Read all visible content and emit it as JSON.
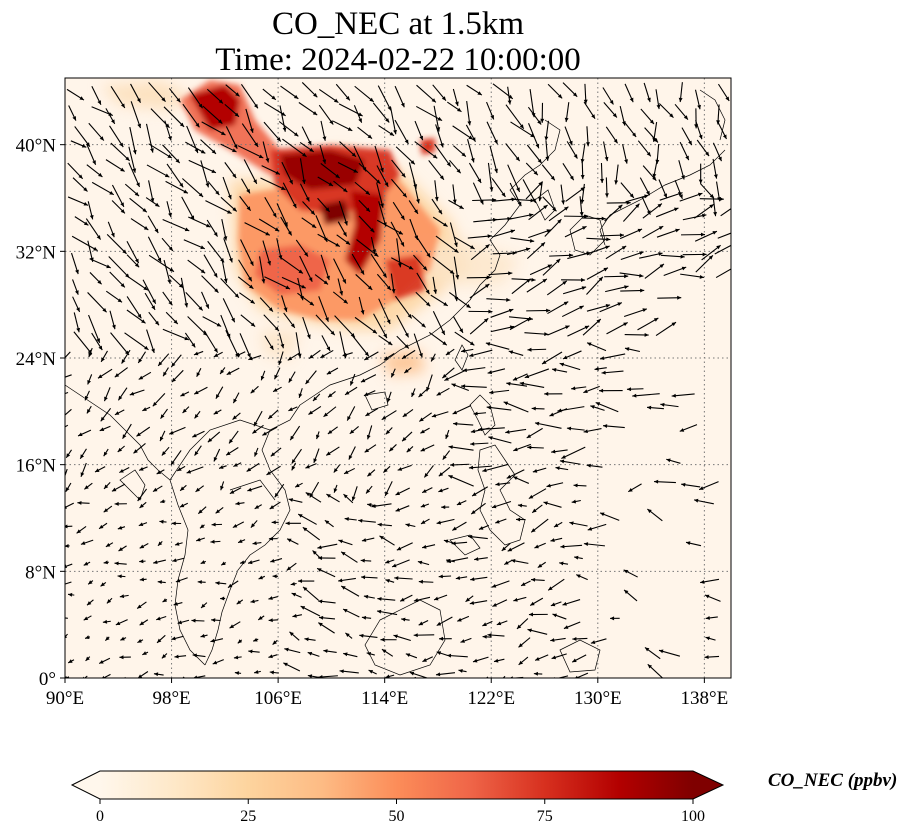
{
  "title": {
    "line1": "CO_NEC at 1.5km",
    "line2": "Time: 2024-02-22 10:00:00"
  },
  "map": {
    "variable": "CO_NEC",
    "height": "1.5km",
    "projection": "PlateCarree",
    "lon_range": [
      90,
      140
    ],
    "lat_range": [
      0,
      45
    ],
    "x_ticks": [
      "90°E",
      "98°E",
      "106°E",
      "114°E",
      "122°E",
      "130°E",
      "138°E"
    ],
    "y_ticks": [
      "0°",
      "8°N",
      "16°N",
      "24°N",
      "32°N",
      "40°N"
    ],
    "grid": "dotted",
    "overlay": "wind vectors",
    "plume": {
      "core_region": "central/north China, ~103-118°E, 26-45°N",
      "peak_value_ppbv": 100
    }
  },
  "colorbar": {
    "label": "CO_NEC (ppbv)",
    "colormap": "OrRd",
    "min": 0,
    "max": 100,
    "ticks": [
      "0",
      "25",
      "50",
      "75",
      "100"
    ],
    "extend": "both",
    "colors": [
      "#fff7ec",
      "#fee8c8",
      "#fdd49e",
      "#fdbb84",
      "#fc8d59",
      "#ef6548",
      "#d7301f",
      "#b30000",
      "#7f0000"
    ]
  }
}
